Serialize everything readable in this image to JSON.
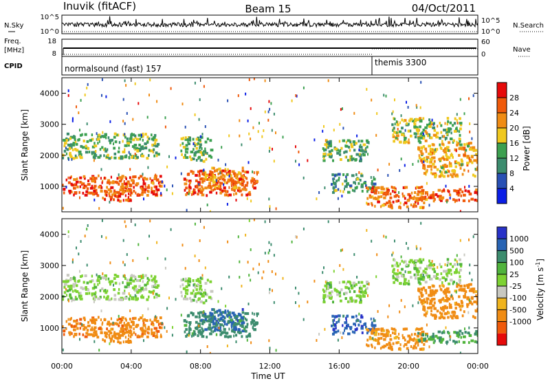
{
  "header": {
    "station": "Inuvik (fitACF)",
    "beam": "Beam 15",
    "date": "04/Oct/2011"
  },
  "status_panels": {
    "nsky_label": "N.Sky",
    "nsearch_label": "N.Search",
    "noise_left_ticks": [
      "10^5",
      "10^0"
    ],
    "noise_right_ticks": [
      "10^5",
      "10^0"
    ],
    "freq_label_line1": "Freq.",
    "freq_label_line2": "[MHz]",
    "freq_ticks": [
      "18",
      "8"
    ],
    "nave_label": "Nave",
    "nave_ticks": [
      "60",
      "0"
    ],
    "cpid_label": "CPID",
    "cpid_1": "normalsound (fast) 157",
    "cpid_2": "themis 3300"
  },
  "axes": {
    "ylabel": "Slant Range [km]",
    "xlabel": "Time UT",
    "y_ticks": [
      "1000",
      "2000",
      "3000",
      "4000"
    ],
    "x_ticks": [
      "00:00",
      "04:00",
      "08:00",
      "12:00",
      "16:00",
      "20:00",
      "00:00"
    ]
  },
  "power_scale": {
    "label": "Power [dB]",
    "ticks": [
      "4",
      "8",
      "12",
      "16",
      "20",
      "24",
      "28"
    ],
    "colors": [
      "#0a1ee6",
      "#2850b4",
      "#3c8c6e",
      "#3ca050",
      "#f0c81e",
      "#f08c14",
      "#f05a0a",
      "#e60a0a"
    ]
  },
  "velocity_scale": {
    "label": "Velocity [m s",
    "label_sup": "-1",
    "label_end": "]",
    "ticks": [
      "1000",
      "500",
      "100",
      "25",
      "-25",
      "-100",
      "-500",
      "-1000"
    ],
    "colors": [
      "#2832c8",
      "#2864b4",
      "#3c8c6e",
      "#50b43c",
      "#7dd232",
      "#c8c8c0",
      "#f0b41e",
      "#f08c14",
      "#f05a0a",
      "#e60a0a"
    ]
  },
  "chart_data": {
    "type": "heatmap",
    "x_range_hours": [
      0,
      24
    ],
    "y_range_km": [
      180,
      4500
    ],
    "panels": [
      "power",
      "velocity"
    ],
    "echo_regions": [
      {
        "t": [
          0.0,
          5.8
        ],
        "r": [
          700,
          1350
        ],
        "power_db": 26,
        "velocity_ms": -400
      },
      {
        "t": [
          0.0,
          5.5
        ],
        "r": [
          1900,
          2700
        ],
        "power_db": 14,
        "velocity_ms": 10
      },
      {
        "t": [
          1.5,
          4.0
        ],
        "r": [
          500,
          900
        ],
        "power_db": 26,
        "velocity_ms": -200
      },
      {
        "t": [
          6.8,
          8.6
        ],
        "r": [
          1800,
          2600
        ],
        "power_db": 14,
        "velocity_ms": 10
      },
      {
        "t": [
          7.0,
          11.2
        ],
        "r": [
          700,
          1500
        ],
        "power_db": 26,
        "velocity_ms": 200
      },
      {
        "t": [
          8.0,
          10.5
        ],
        "r": [
          900,
          1600
        ],
        "power_db": 22,
        "velocity_ms": 700
      },
      {
        "t": [
          15.0,
          17.6
        ],
        "r": [
          1800,
          2500
        ],
        "power_db": 14,
        "velocity_ms": 10
      },
      {
        "t": [
          15.5,
          18.0
        ],
        "r": [
          800,
          1400
        ],
        "power_db": 12,
        "velocity_ms": 800
      },
      {
        "t": [
          17.5,
          21.0
        ],
        "r": [
          300,
          1000
        ],
        "power_db": 24,
        "velocity_ms": -150
      },
      {
        "t": [
          20.5,
          24.0
        ],
        "r": [
          500,
          900
        ],
        "power_db": 28,
        "velocity_ms": 120
      },
      {
        "t": [
          20.5,
          24.0
        ],
        "r": [
          1300,
          2400
        ],
        "power_db": 20,
        "velocity_ms": -200
      },
      {
        "t": [
          19.0,
          23.0
        ],
        "r": [
          2400,
          3200
        ],
        "power_db": 16,
        "velocity_ms": 10
      }
    ]
  }
}
